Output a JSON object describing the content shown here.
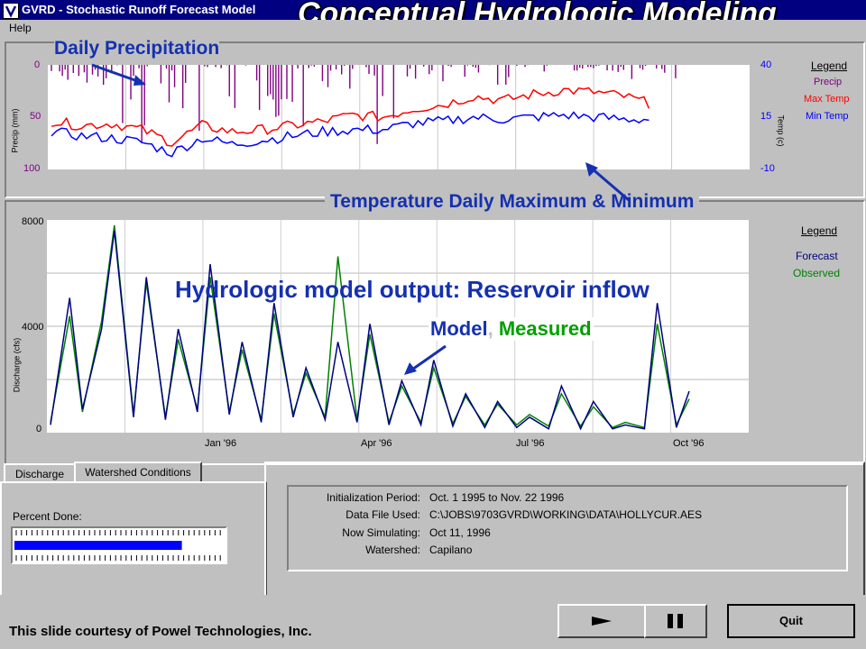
{
  "window": {
    "title": "GVRD - Stochastic Runoff Forecast Model",
    "menu": [
      "Help"
    ]
  },
  "slide": {
    "title": "Conceptual Hydrologic Modeling",
    "courtesy": "This slide courtesy of Powel Technologies, Inc."
  },
  "annotations": {
    "daily_precip": "Daily Precipitation",
    "temperature": "Temperature Daily Maximum & Minimum",
    "model_output": "Hydrologic model output: Reservoir inflow",
    "model": "Model",
    "comma": ",",
    "measured": "Measured"
  },
  "colors": {
    "precip": "#800080",
    "max_temp": "#ff0000",
    "min_temp": "#0000ff",
    "forecast": "#000080",
    "observed": "#008000",
    "annotation_blue": "#1530b0",
    "measured_green": "#00a000"
  },
  "chart_data": [
    {
      "type": "line",
      "title": "",
      "left_axis": {
        "label": "Precip (mm)",
        "ticks": [
          "0",
          "50",
          "100"
        ],
        "range": [
          0,
          100
        ],
        "inverted": true
      },
      "right_axis": {
        "label": "Temp (c)",
        "ticks": [
          "40",
          "15",
          "-10"
        ],
        "range": [
          -10,
          40
        ]
      },
      "legend": {
        "title": "Legend",
        "entries": [
          "Precip",
          "Max Temp",
          "Min Temp"
        ],
        "placement": "right"
      },
      "series": [
        {
          "name": "Max Temp",
          "x": [
            0,
            5,
            10,
            15,
            20,
            25,
            30,
            35,
            40,
            45,
            50,
            55,
            60,
            65,
            70,
            75,
            80,
            85,
            90,
            95,
            100
          ],
          "values": [
            13,
            11,
            12,
            9,
            3,
            11,
            8,
            9,
            11,
            13,
            16,
            15,
            19,
            21,
            25,
            23,
            26,
            28,
            27,
            25,
            21
          ]
        },
        {
          "name": "Min Temp",
          "x": [
            0,
            5,
            10,
            15,
            20,
            25,
            30,
            35,
            40,
            45,
            50,
            55,
            60,
            65,
            70,
            75,
            80,
            85,
            90,
            95,
            100
          ],
          "values": [
            8,
            6,
            5,
            3,
            -2,
            5,
            2,
            4,
            6,
            8,
            9,
            9,
            12,
            13,
            15,
            14,
            15,
            16,
            15,
            14,
            14
          ]
        }
      ]
    },
    {
      "type": "line",
      "title": "",
      "y_axis": {
        "label": "Discharge (cfs)",
        "ticks": [
          "8000",
          "4000",
          "0"
        ],
        "range": [
          0,
          8000
        ]
      },
      "x_axis": {
        "ticks": [
          "Jan '96",
          "Apr '96",
          "Jul '96",
          "Oct '96"
        ]
      },
      "legend": {
        "title": "Legend",
        "entries": [
          "Forecast",
          "Observed"
        ],
        "placement": "right"
      },
      "series": [
        {
          "name": "Forecast",
          "x": [
            0,
            3,
            5,
            8,
            10,
            13,
            15,
            18,
            20,
            23,
            25,
            28,
            30,
            33,
            35,
            38,
            40,
            43,
            45,
            48,
            50,
            53,
            55,
            58,
            60,
            63,
            65,
            68,
            70,
            73,
            75,
            78,
            80,
            83,
            85,
            88,
            90,
            93,
            95,
            98,
            100
          ],
          "values": [
            300,
            5200,
            900,
            4000,
            7800,
            600,
            6000,
            500,
            4000,
            800,
            6500,
            700,
            3500,
            400,
            5000,
            600,
            2500,
            500,
            3500,
            400,
            4200,
            300,
            2000,
            300,
            2800,
            250,
            1500,
            200,
            1200,
            200,
            600,
            150,
            1800,
            150,
            1200,
            150,
            300,
            150,
            5000,
            200,
            1600
          ]
        },
        {
          "name": "Observed",
          "x": [
            0,
            3,
            5,
            8,
            10,
            13,
            15,
            18,
            20,
            23,
            25,
            28,
            30,
            33,
            35,
            38,
            40,
            43,
            45,
            48,
            50,
            53,
            55,
            58,
            60,
            63,
            65,
            68,
            70,
            73,
            75,
            78,
            80,
            83,
            85,
            88,
            90,
            93,
            95,
            98,
            100
          ],
          "values": [
            400,
            4500,
            800,
            4300,
            8000,
            700,
            5800,
            600,
            3600,
            900,
            6000,
            800,
            3200,
            500,
            4600,
            700,
            2300,
            600,
            6800,
            500,
            3800,
            400,
            1800,
            400,
            2500,
            350,
            1400,
            300,
            1100,
            300,
            700,
            250,
            1500,
            250,
            1000,
            200,
            400,
            200,
            4200,
            300,
            1300
          ]
        }
      ]
    }
  ],
  "tabs": {
    "discharge": "Discharge",
    "watershed": "Watershed Conditions"
  },
  "progress": {
    "label": "Percent Done:",
    "value": 0.8
  },
  "info": {
    "rows": [
      {
        "label": "Initialization Period:",
        "value": "Oct. 1 1995 to Nov. 22 1996"
      },
      {
        "label": "Data File Used:",
        "value": "C:\\JOBS\\9703GVRD\\WORKING\\DATA\\HOLLYCUR.AES"
      },
      {
        "label": "Now Simulating:",
        "value": "Oct 11, 1996"
      },
      {
        "label": "Watershed:",
        "value": "Capilano"
      }
    ]
  },
  "buttons": {
    "play_icon": "play-icon",
    "pause_icon": "pause-icon",
    "quit": "Quit"
  }
}
